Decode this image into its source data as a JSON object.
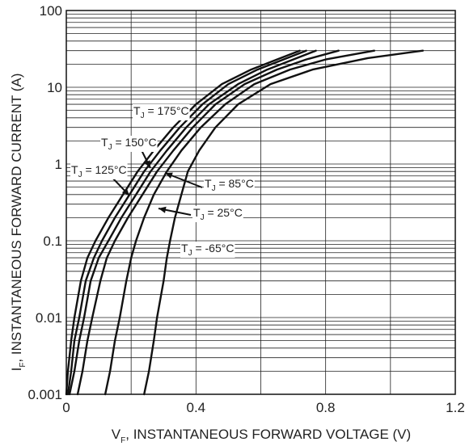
{
  "chart_data": {
    "type": "line",
    "x_scale": "linear",
    "y_scale": "log",
    "xlim": [
      0,
      1.2
    ],
    "ylim": [
      0.001,
      100
    ],
    "x_ticks": [
      "0",
      "0.4",
      "0.8",
      "1.2"
    ],
    "y_ticks": [
      "0.001",
      "0.01",
      "0.1",
      "1",
      "10",
      "100"
    ],
    "xlabel": {
      "main": "V",
      "sub": "F",
      "rest": ", INSTANTANEOUS FORWARD VOLTAGE (V)"
    },
    "ylabel": {
      "main": "I",
      "sub": "F",
      "rest": ", INSTANTANEOUS FORWARD CURRENT (A)"
    },
    "grid": true,
    "series": [
      {
        "name": "TJ = 175°C",
        "label_main": "T",
        "label_sub": "J",
        "label_rest": " = 175°C",
        "points": [
          [
            0.0,
            0.001
          ],
          [
            0.005,
            0.002
          ],
          [
            0.015,
            0.005
          ],
          [
            0.025,
            0.01
          ],
          [
            0.045,
            0.03
          ],
          [
            0.065,
            0.06
          ],
          [
            0.09,
            0.1
          ],
          [
            0.13,
            0.2
          ],
          [
            0.175,
            0.4
          ],
          [
            0.22,
            0.8
          ],
          [
            0.27,
            1.5
          ],
          [
            0.33,
            3
          ],
          [
            0.4,
            6
          ],
          [
            0.48,
            11
          ],
          [
            0.57,
            17
          ],
          [
            0.65,
            23
          ],
          [
            0.72,
            30
          ]
        ]
      },
      {
        "name": "TJ = 150°C",
        "label_main": "T",
        "label_sub": "J",
        "label_rest": " = 150°C",
        "points": [
          [
            0.005,
            0.001
          ],
          [
            0.015,
            0.002
          ],
          [
            0.025,
            0.005
          ],
          [
            0.04,
            0.01
          ],
          [
            0.06,
            0.03
          ],
          [
            0.085,
            0.06
          ],
          [
            0.11,
            0.1
          ],
          [
            0.15,
            0.2
          ],
          [
            0.195,
            0.4
          ],
          [
            0.24,
            0.8
          ],
          [
            0.29,
            1.5
          ],
          [
            0.35,
            3
          ],
          [
            0.42,
            6
          ],
          [
            0.5,
            11
          ],
          [
            0.59,
            17
          ],
          [
            0.67,
            23
          ],
          [
            0.74,
            30
          ]
        ]
      },
      {
        "name": "TJ = 125°C",
        "label_main": "T",
        "label_sub": "J",
        "label_rest": " = 125°C",
        "points": [
          [
            0.01,
            0.001
          ],
          [
            0.025,
            0.002
          ],
          [
            0.04,
            0.005
          ],
          [
            0.055,
            0.01
          ],
          [
            0.075,
            0.03
          ],
          [
            0.1,
            0.06
          ],
          [
            0.13,
            0.1
          ],
          [
            0.17,
            0.2
          ],
          [
            0.215,
            0.4
          ],
          [
            0.26,
            0.8
          ],
          [
            0.31,
            1.5
          ],
          [
            0.37,
            3
          ],
          [
            0.44,
            6
          ],
          [
            0.53,
            11
          ],
          [
            0.62,
            17
          ],
          [
            0.7,
            23
          ],
          [
            0.77,
            30
          ]
        ]
      },
      {
        "name": "TJ = 85°C",
        "label_main": "T",
        "label_sub": "J",
        "label_rest": " = 85°C",
        "points": [
          [
            0.035,
            0.001
          ],
          [
            0.05,
            0.002
          ],
          [
            0.065,
            0.005
          ],
          [
            0.08,
            0.01
          ],
          [
            0.105,
            0.03
          ],
          [
            0.125,
            0.06
          ],
          [
            0.15,
            0.1
          ],
          [
            0.19,
            0.2
          ],
          [
            0.235,
            0.4
          ],
          [
            0.28,
            0.8
          ],
          [
            0.33,
            1.5
          ],
          [
            0.39,
            3
          ],
          [
            0.46,
            6
          ],
          [
            0.55,
            11
          ],
          [
            0.65,
            17
          ],
          [
            0.74,
            23
          ],
          [
            0.84,
            30
          ]
        ]
      },
      {
        "name": "TJ = 25°C",
        "label_main": "T",
        "label_sub": "J",
        "label_rest": " = 25°C",
        "points": [
          [
            0.12,
            0.001
          ],
          [
            0.135,
            0.002
          ],
          [
            0.15,
            0.005
          ],
          [
            0.165,
            0.01
          ],
          [
            0.185,
            0.03
          ],
          [
            0.2,
            0.06
          ],
          [
            0.215,
            0.1
          ],
          [
            0.24,
            0.2
          ],
          [
            0.27,
            0.4
          ],
          [
            0.31,
            0.8
          ],
          [
            0.355,
            1.5
          ],
          [
            0.415,
            3
          ],
          [
            0.49,
            6
          ],
          [
            0.58,
            11
          ],
          [
            0.69,
            17
          ],
          [
            0.8,
            23
          ],
          [
            0.95,
            30
          ]
        ]
      },
      {
        "name": "TJ = -65°C",
        "label_main": "T",
        "label_sub": "J",
        "label_rest": " = -65°C",
        "points": [
          [
            0.24,
            0.001
          ],
          [
            0.255,
            0.002
          ],
          [
            0.27,
            0.005
          ],
          [
            0.28,
            0.01
          ],
          [
            0.3,
            0.03
          ],
          [
            0.31,
            0.06
          ],
          [
            0.32,
            0.1
          ],
          [
            0.335,
            0.2
          ],
          [
            0.355,
            0.4
          ],
          [
            0.375,
            0.8
          ],
          [
            0.41,
            1.5
          ],
          [
            0.46,
            3
          ],
          [
            0.53,
            6
          ],
          [
            0.63,
            11
          ],
          [
            0.76,
            17
          ],
          [
            0.93,
            24
          ],
          [
            1.1,
            30
          ]
        ]
      }
    ]
  }
}
